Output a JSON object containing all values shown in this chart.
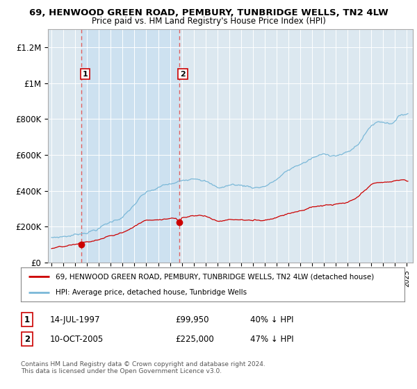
{
  "title": "69, HENWOOD GREEN ROAD, PEMBURY, TUNBRIDGE WELLS, TN2 4LW",
  "subtitle": "Price paid vs. HM Land Registry's House Price Index (HPI)",
  "hpi_label": "HPI: Average price, detached house, Tunbridge Wells",
  "property_label": "69, HENWOOD GREEN ROAD, PEMBURY, TUNBRIDGE WELLS, TN2 4LW (detached house)",
  "hpi_color": "#7ab8d8",
  "property_color": "#cc0000",
  "dashed_line_color": "#e06060",
  "background_color": "#ffffff",
  "plot_bg_color": "#dce8f0",
  "shade_color": "#c8dff0",
  "ylim": [
    0,
    1300000
  ],
  "yticks": [
    0,
    200000,
    400000,
    600000,
    800000,
    1000000,
    1200000
  ],
  "ytick_labels": [
    "£0",
    "£200K",
    "£400K",
    "£600K",
    "£800K",
    "£1M",
    "£1.2M"
  ],
  "transaction1": {
    "label": "1",
    "date": "14-JUL-1997",
    "price": 99950,
    "hpi_diff": "40% ↓ HPI",
    "year": 1997.54
  },
  "transaction2": {
    "label": "2",
    "date": "10-OCT-2005",
    "price": 225000,
    "hpi_diff": "47% ↓ HPI",
    "year": 2005.79
  },
  "footer": "Contains HM Land Registry data © Crown copyright and database right 2024.\nThis data is licensed under the Open Government Licence v3.0.",
  "xmin": 1994.7,
  "xmax": 2025.5
}
